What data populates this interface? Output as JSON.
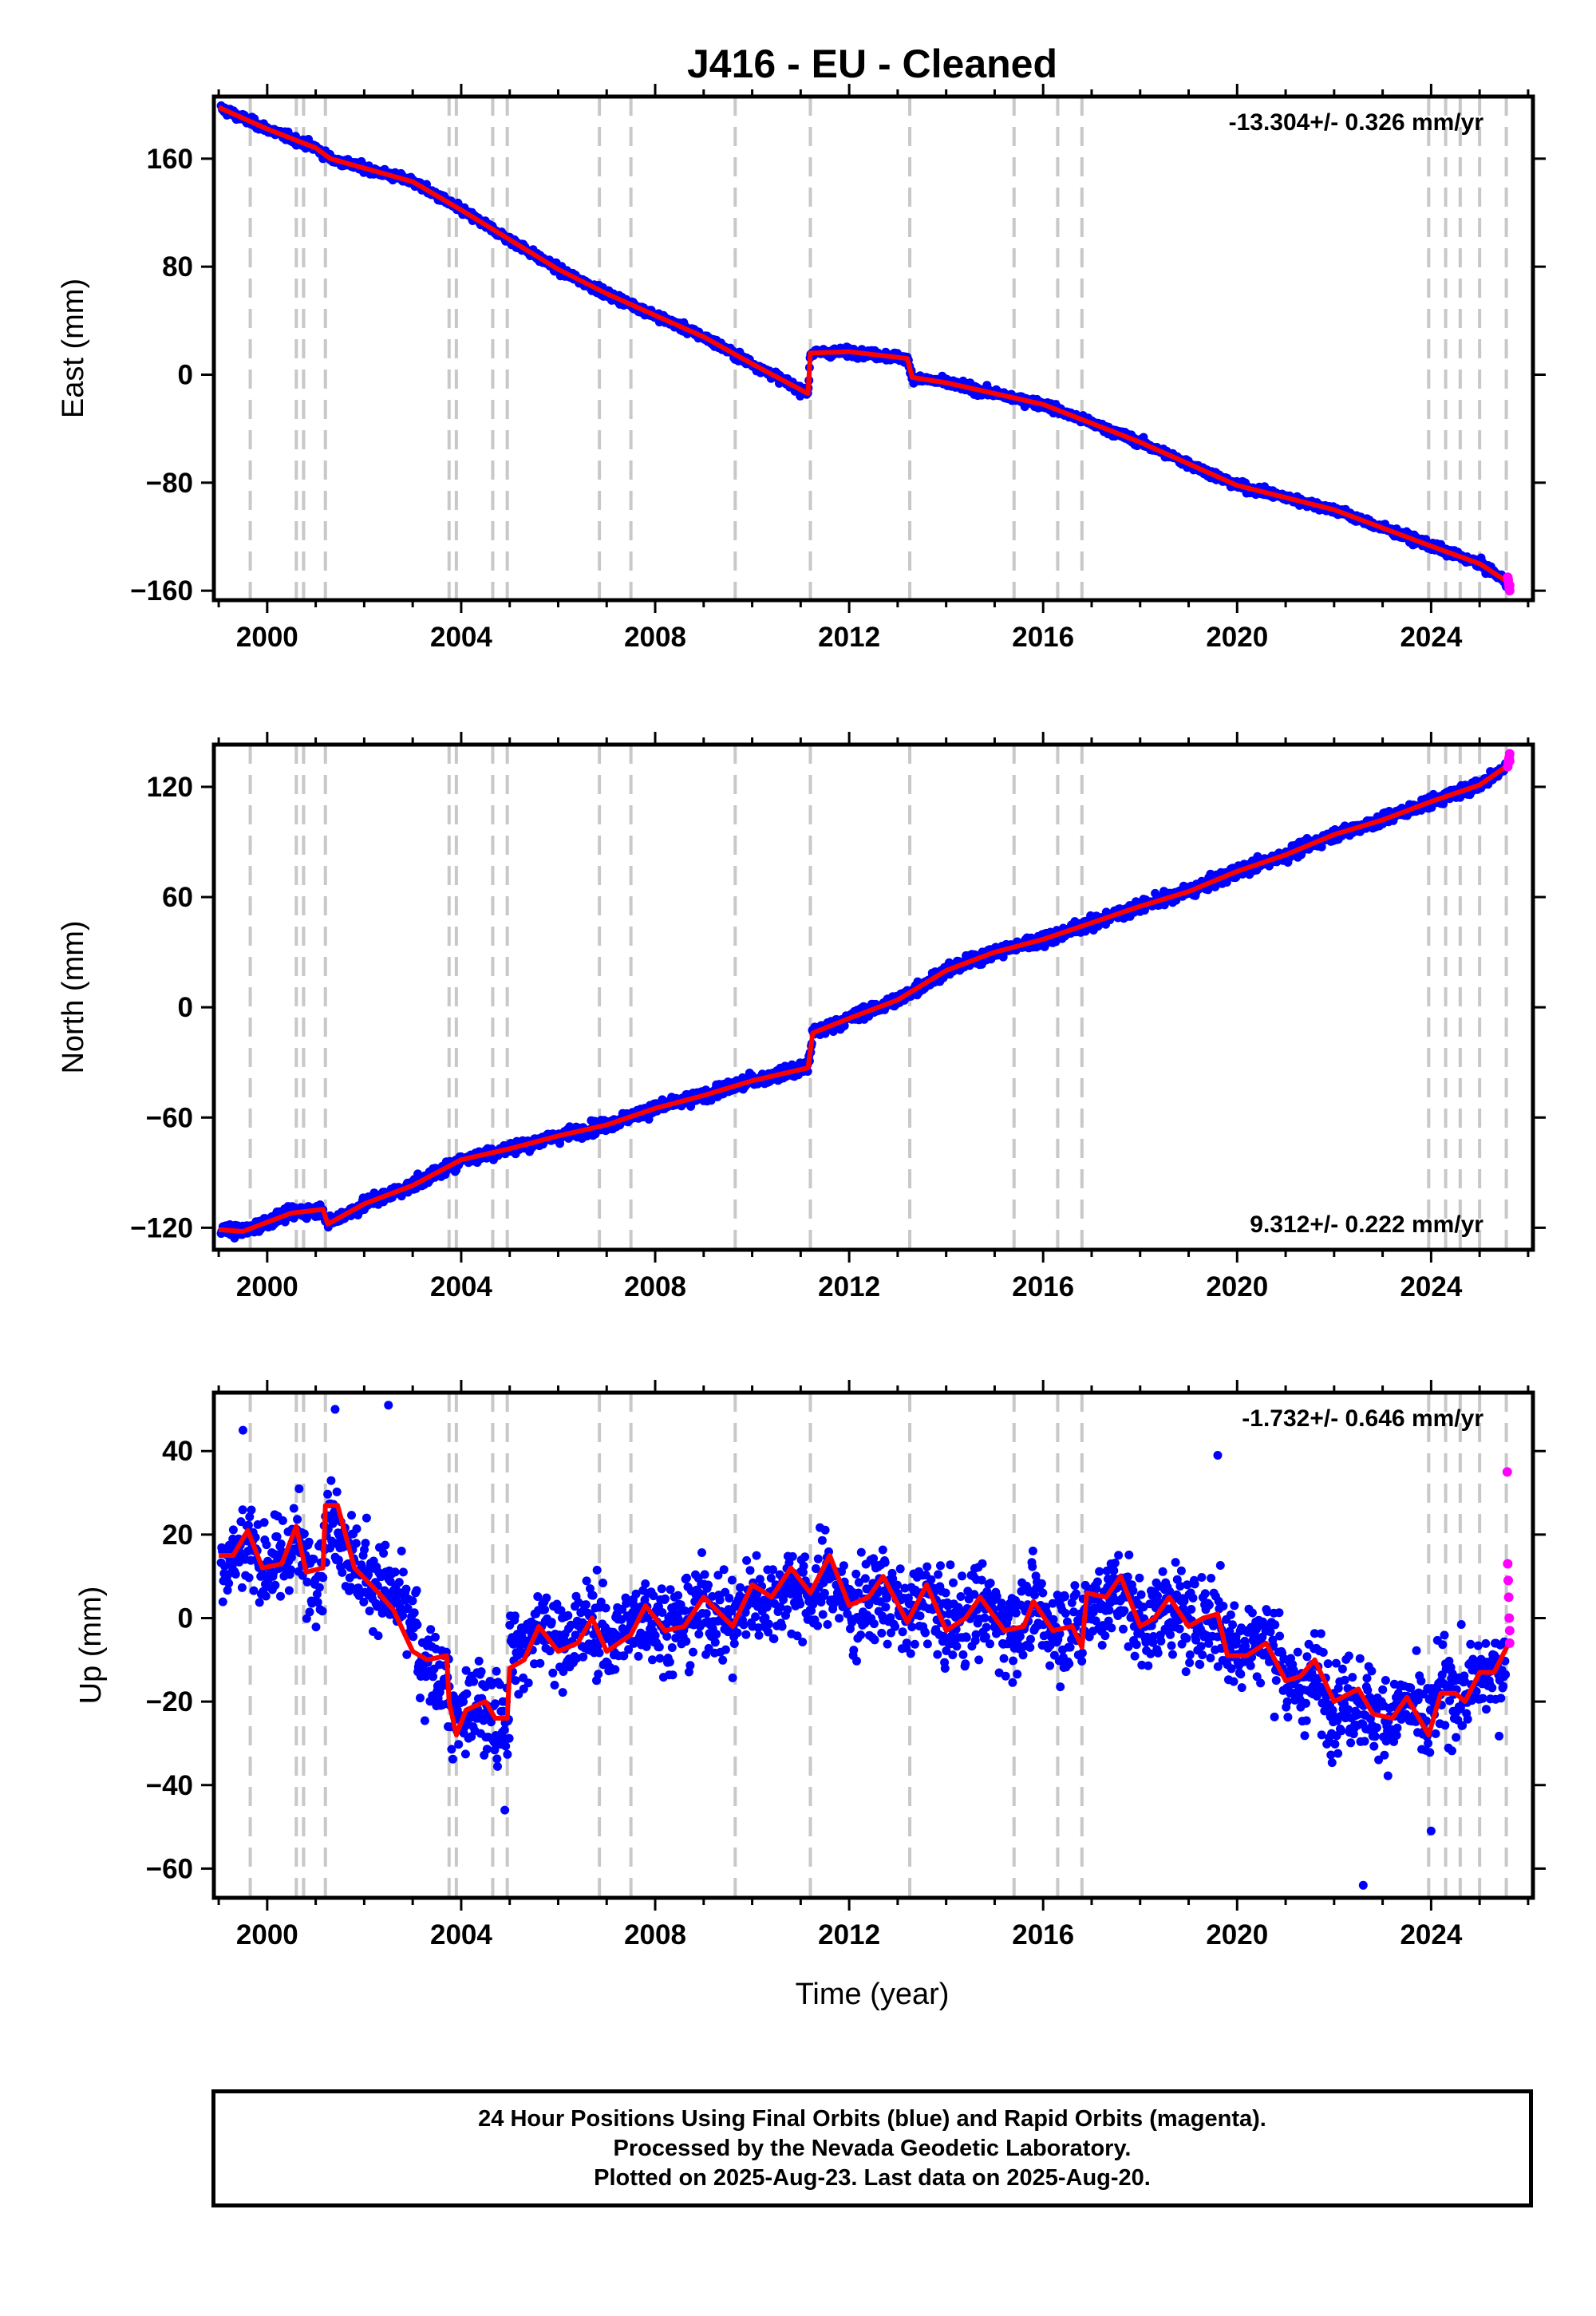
{
  "chart_data": {
    "title": "J416  - EU - Cleaned",
    "xlabel": "Time (year)",
    "xlim": [
      1998.9,
      2026.1
    ],
    "x_ticks": [
      "2000",
      "2004",
      "2008",
      "2012",
      "2016",
      "2020",
      "2024"
    ],
    "equipment_change_years": [
      1999.65,
      2000.6,
      2000.75,
      2001.2,
      2003.75,
      2003.9,
      2004.65,
      2004.95,
      2006.85,
      2007.5,
      2009.65,
      2011.2,
      2013.25,
      2015.4,
      2016.3,
      2016.8,
      2023.95,
      2024.3,
      2024.6,
      2025.0,
      2025.55
    ],
    "colors": {
      "final_orbits": "#0000ff",
      "rapid_orbits": "#ff00ff",
      "model": "#ff0000",
      "event_lines": "#c8c8c8"
    },
    "panels": [
      {
        "id": "east",
        "type": "scatter",
        "ylabel": "East (mm)",
        "ylim": [
          -167,
          206
        ],
        "y_ticks": [
          "160",
          "80",
          "0",
          "−80",
          "−160"
        ],
        "y_tick_values": [
          160,
          80,
          0,
          -80,
          -160
        ],
        "rate_text": "-13.304+/- 0.326 mm/yr",
        "rate_position": "top-right",
        "noise_mm": 2.2,
        "model": [
          [
            1999.0,
            198
          ],
          [
            2000.0,
            182
          ],
          [
            2001.0,
            168
          ],
          [
            2001.3,
            160
          ],
          [
            2003.0,
            143
          ],
          [
            2004.0,
            122
          ],
          [
            2005.0,
            100
          ],
          [
            2006.0,
            78
          ],
          [
            2007.0,
            60
          ],
          [
            2008.0,
            44
          ],
          [
            2009.0,
            28
          ],
          [
            2010.0,
            8
          ],
          [
            2011.15,
            -14
          ],
          [
            2011.2,
            16
          ],
          [
            2012.0,
            17
          ],
          [
            2013.2,
            12
          ],
          [
            2013.3,
            -2
          ],
          [
            2014.0,
            -6
          ],
          [
            2016.0,
            -22
          ],
          [
            2018.0,
            -50
          ],
          [
            2020.0,
            -82
          ],
          [
            2022.0,
            -100
          ],
          [
            2024.0,
            -127
          ],
          [
            2025.0,
            -140
          ],
          [
            2025.6,
            -154
          ]
        ],
        "rapid_points": [
          [
            2025.58,
            -150
          ],
          [
            2025.59,
            -152
          ],
          [
            2025.6,
            -155
          ],
          [
            2025.61,
            -158
          ],
          [
            2025.62,
            -160
          ],
          [
            2025.62,
            -156
          ]
        ]
      },
      {
        "id": "north",
        "type": "scatter",
        "ylabel": "North (mm)",
        "ylim": [
          -132,
          143
        ],
        "y_ticks": [
          "120",
          "60",
          "0",
          "−60",
          "−120"
        ],
        "y_tick_values": [
          120,
          60,
          0,
          -60,
          -120
        ],
        "rate_text": "9.312+/- 0.222 mm/yr",
        "rate_position": "bottom-right",
        "noise_mm": 2.4,
        "model": [
          [
            1999.0,
            -121
          ],
          [
            1999.5,
            -122
          ],
          [
            2000.5,
            -112
          ],
          [
            2001.15,
            -110
          ],
          [
            2001.25,
            -118
          ],
          [
            2002.0,
            -107
          ],
          [
            2003.0,
            -97
          ],
          [
            2004.0,
            -83
          ],
          [
            2005.0,
            -77
          ],
          [
            2006.0,
            -70
          ],
          [
            2007.0,
            -64
          ],
          [
            2008.0,
            -55
          ],
          [
            2009.0,
            -48
          ],
          [
            2010.0,
            -40
          ],
          [
            2011.15,
            -33
          ],
          [
            2011.25,
            -14
          ],
          [
            2012.0,
            -6
          ],
          [
            2013.0,
            4
          ],
          [
            2014.0,
            20
          ],
          [
            2015.0,
            30
          ],
          [
            2016.0,
            37
          ],
          [
            2017.0,
            46
          ],
          [
            2018.0,
            55
          ],
          [
            2019.0,
            63
          ],
          [
            2020.0,
            74
          ],
          [
            2021.0,
            83
          ],
          [
            2022.0,
            94
          ],
          [
            2023.0,
            102
          ],
          [
            2024.0,
            112
          ],
          [
            2025.0,
            121
          ],
          [
            2025.6,
            132
          ]
        ],
        "rapid_points": [
          [
            2025.58,
            131
          ],
          [
            2025.59,
            133
          ],
          [
            2025.6,
            135
          ],
          [
            2025.61,
            136
          ],
          [
            2025.62,
            138
          ],
          [
            2025.62,
            134
          ]
        ]
      },
      {
        "id": "up",
        "type": "scatter",
        "ylabel": "Up (mm)",
        "ylim": [
          -67,
          54
        ],
        "y_ticks": [
          "40",
          "20",
          "0",
          "−20",
          "−40",
          "−60"
        ],
        "y_tick_values": [
          40,
          20,
          0,
          -20,
          -40,
          -60
        ],
        "rate_text": "-1.732+/- 0.646 mm/yr",
        "rate_position": "top-right",
        "noise_mm": 7.5,
        "model": [
          [
            1999.0,
            15
          ],
          [
            1999.3,
            15
          ],
          [
            1999.6,
            21
          ],
          [
            1999.9,
            12
          ],
          [
            2000.3,
            13
          ],
          [
            2000.6,
            22
          ],
          [
            2000.8,
            11
          ],
          [
            2001.15,
            12
          ],
          [
            2001.2,
            27
          ],
          [
            2001.45,
            27
          ],
          [
            2001.8,
            12
          ],
          [
            2002.3,
            6
          ],
          [
            2002.6,
            2
          ],
          [
            2003.0,
            -8
          ],
          [
            2003.3,
            -10
          ],
          [
            2003.7,
            -9
          ],
          [
            2003.75,
            -20
          ],
          [
            2003.9,
            -28
          ],
          [
            2004.1,
            -22
          ],
          [
            2004.5,
            -20
          ],
          [
            2004.7,
            -24
          ],
          [
            2004.95,
            -24
          ],
          [
            2005.0,
            -12
          ],
          [
            2005.3,
            -10
          ],
          [
            2005.6,
            -2
          ],
          [
            2006.0,
            -8
          ],
          [
            2006.4,
            -6
          ],
          [
            2006.7,
            0
          ],
          [
            2007.0,
            -8
          ],
          [
            2007.5,
            -4
          ],
          [
            2007.8,
            3
          ],
          [
            2008.2,
            -3
          ],
          [
            2008.6,
            -2
          ],
          [
            2009.0,
            5
          ],
          [
            2009.6,
            -2
          ],
          [
            2010.0,
            8
          ],
          [
            2010.4,
            5
          ],
          [
            2010.8,
            12
          ],
          [
            2011.2,
            6
          ],
          [
            2011.6,
            15
          ],
          [
            2012.0,
            3
          ],
          [
            2012.4,
            5
          ],
          [
            2012.7,
            10
          ],
          [
            2013.2,
            -1
          ],
          [
            2013.6,
            8
          ],
          [
            2014.0,
            -3
          ],
          [
            2014.4,
            0
          ],
          [
            2014.7,
            5
          ],
          [
            2015.2,
            -3
          ],
          [
            2015.6,
            -2
          ],
          [
            2015.8,
            4
          ],
          [
            2016.2,
            -3
          ],
          [
            2016.6,
            -2
          ],
          [
            2016.8,
            -7
          ],
          [
            2016.9,
            6
          ],
          [
            2017.3,
            5
          ],
          [
            2017.6,
            10
          ],
          [
            2018.0,
            -2
          ],
          [
            2018.3,
            0
          ],
          [
            2018.6,
            5
          ],
          [
            2019.0,
            -2
          ],
          [
            2019.3,
            0
          ],
          [
            2019.6,
            1
          ],
          [
            2019.8,
            -9
          ],
          [
            2020.2,
            -9
          ],
          [
            2020.6,
            -6
          ],
          [
            2021.0,
            -15
          ],
          [
            2021.3,
            -14
          ],
          [
            2021.6,
            -10
          ],
          [
            2022.0,
            -20
          ],
          [
            2022.5,
            -17
          ],
          [
            2022.8,
            -23
          ],
          [
            2023.2,
            -24
          ],
          [
            2023.5,
            -19
          ],
          [
            2023.95,
            -28
          ],
          [
            2024.2,
            -18
          ],
          [
            2024.5,
            -18
          ],
          [
            2024.7,
            -20
          ],
          [
            2025.0,
            -13
          ],
          [
            2025.3,
            -13
          ],
          [
            2025.6,
            -6
          ]
        ],
        "segment_offsets": [
          [
            1999.0,
            2003.1,
            14
          ],
          [
            2003.1,
            2005.0,
            -23
          ],
          [
            2005.0,
            2021.0,
            0
          ],
          [
            2021.0,
            2024.0,
            -23
          ],
          [
            2024.0,
            2025.55,
            -16
          ]
        ],
        "outliers": [
          [
            1999.5,
            45
          ],
          [
            2001.4,
            50
          ],
          [
            2002.5,
            51
          ],
          [
            2019.6,
            39
          ],
          [
            2022.6,
            -64
          ],
          [
            2024.0,
            -51
          ],
          [
            2004.9,
            -46
          ]
        ],
        "rapid_points": [
          [
            2025.57,
            35
          ],
          [
            2025.58,
            13
          ],
          [
            2025.59,
            9
          ],
          [
            2025.6,
            5
          ],
          [
            2025.61,
            0
          ],
          [
            2025.62,
            -3
          ],
          [
            2025.62,
            -6
          ]
        ]
      }
    ]
  },
  "footer": {
    "line1": "24 Hour Positions Using Final Orbits (blue) and Rapid Orbits (magenta).",
    "line2": "Processed by the Nevada Geodetic Laboratory.",
    "line3": "Plotted on 2025-Aug-23. Last data on 2025-Aug-20."
  }
}
